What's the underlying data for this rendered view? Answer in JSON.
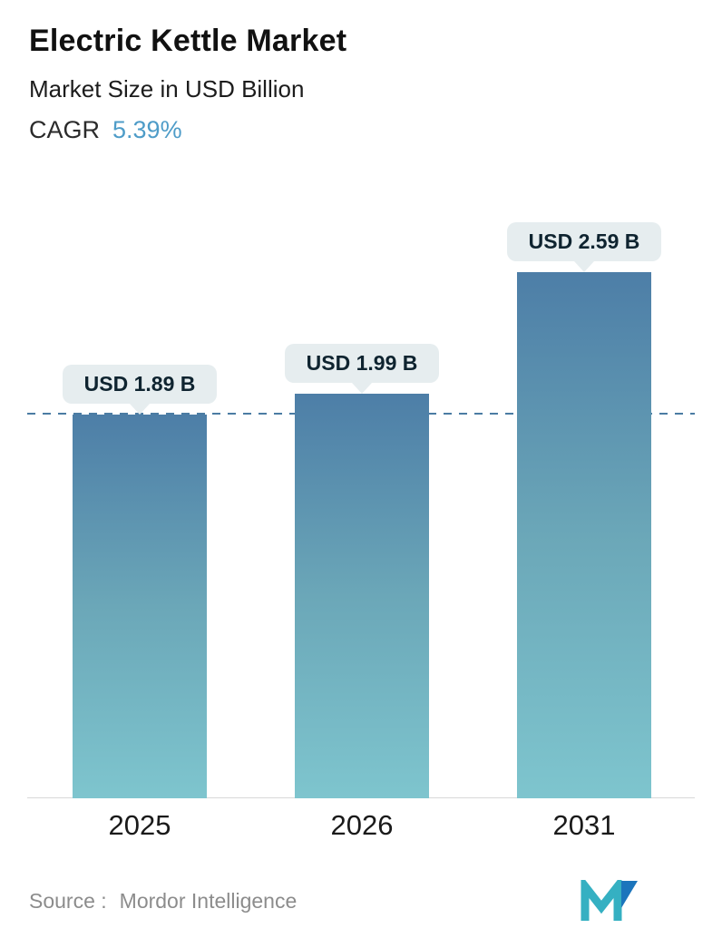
{
  "header": {
    "title": "Electric Kettle Market",
    "subtitle": "Market Size in USD Billion",
    "cagr_label": "CAGR",
    "cagr_value": "5.39%"
  },
  "chart_data": {
    "type": "bar",
    "categories": [
      "2025",
      "2026",
      "2031"
    ],
    "values": [
      1.89,
      1.99,
      2.59
    ],
    "value_labels": [
      "USD 1.89 B",
      "USD 1.99 B",
      "USD 2.59 B"
    ],
    "title": "Electric Kettle Market",
    "xlabel": "",
    "ylabel": "Market Size in USD Billion",
    "ylim": [
      0,
      2.8
    ],
    "grid": false,
    "legend": false,
    "reference_line_value": 1.89,
    "bar_gradient_top": "#4d7ea7",
    "bar_gradient_mid": "#6ba7b8",
    "bar_gradient_bottom": "#7ec5ce",
    "label_pill_bg": "#e6edef",
    "reference_line_color": "#4b7ca3"
  },
  "footer": {
    "source_label": "Source :",
    "source_value": "Mordor Intelligence"
  },
  "colors": {
    "accent_blue": "#4e9cc8",
    "logo_teal": "#35b0c2",
    "logo_blue": "#1c75bc"
  }
}
